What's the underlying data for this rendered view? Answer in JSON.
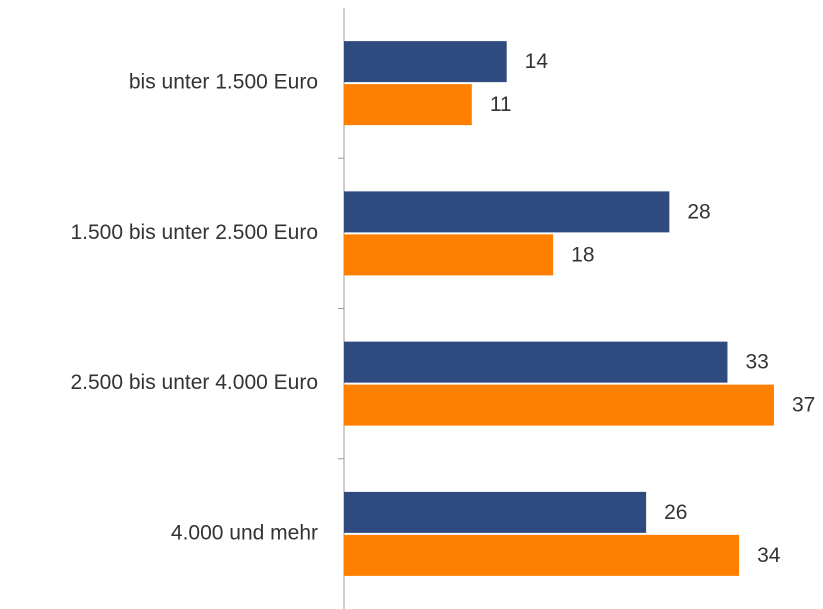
{
  "chart_data": {
    "type": "bar",
    "orientation": "horizontal",
    "categories": [
      "bis unter 1.500 Euro",
      "1.500 bis unter 2.500 Euro",
      "2.500 bis unter 4.000 Euro",
      "4.000 und mehr"
    ],
    "series": [
      {
        "color": "#2e4a7f",
        "values": [
          14,
          28,
          33,
          26
        ]
      },
      {
        "color": "#ff7f00",
        "values": [
          11,
          18,
          37,
          34
        ]
      }
    ]
  }
}
